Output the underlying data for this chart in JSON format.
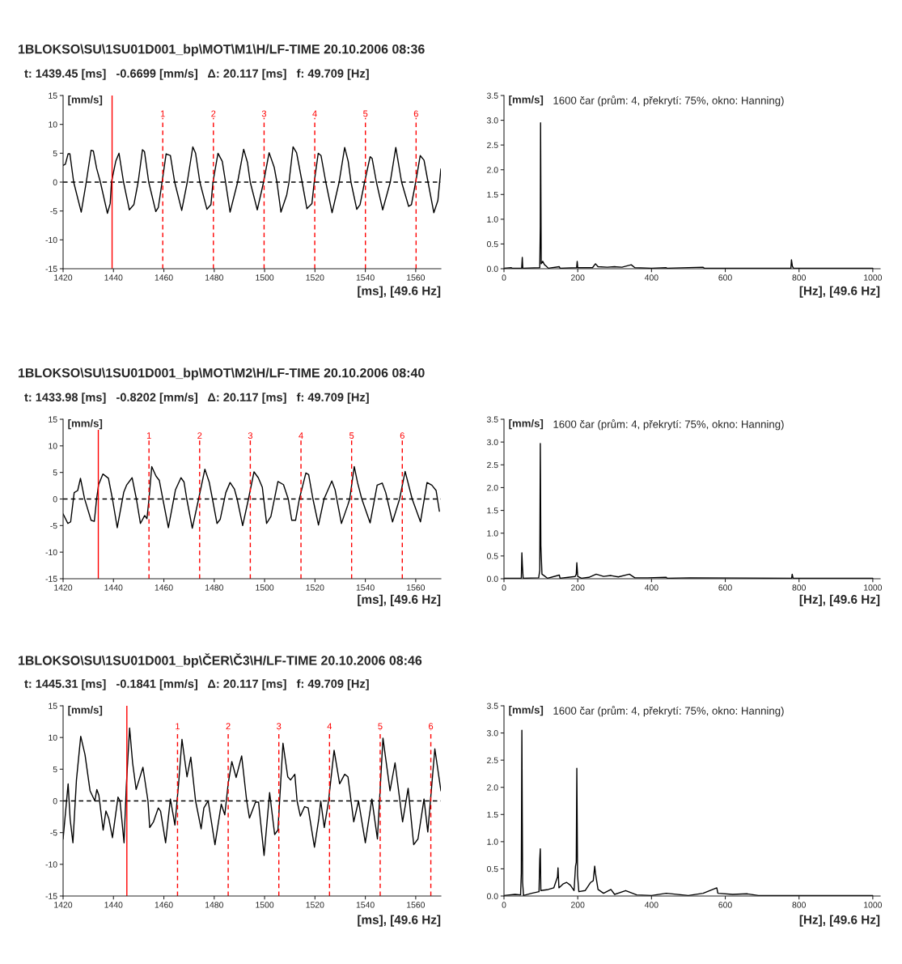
{
  "chart_data": [
    {
      "type": "line",
      "title": "1BLOKSO\\SU\\1SU01D001_bp\\MOT\\M1\\H/LF-TIME 20.10.2006 08:36",
      "annotations": [
        {
          "text": "1",
          "x": 1459.57,
          "y": 11
        },
        {
          "text": "2",
          "x": 1479.68,
          "y": 11
        },
        {
          "text": "3",
          "x": 1499.8,
          "y": 11
        },
        {
          "text": "4",
          "x": 1519.92,
          "y": 11
        },
        {
          "text": "5",
          "x": 1540.04,
          "y": 11
        },
        {
          "text": "6",
          "x": 1560.15,
          "y": 11
        }
      ],
      "subtitle": "t: 1439.45 [ms]   -0.6699 [mm/s]   Δ: 20.117 [ms]   f: 49.709 [Hz]",
      "ylabel": "[mm/s]",
      "xlabel": "[ms], [49.6 Hz]",
      "xlim": [
        1420,
        1570
      ],
      "ylim": [
        -15,
        15
      ],
      "xticks": [
        1420,
        1440,
        1460,
        1480,
        1500,
        1520,
        1540,
        1560
      ],
      "yticks": [
        -15,
        -10,
        -5,
        0,
        5,
        10,
        15
      ],
      "grid": false,
      "series": [
        {
          "color": "#000000",
          "x": [
            1420,
            1420.9,
            1422,
            1422.7,
            1424.2,
            1427.2,
            1429.2,
            1431.1,
            1432,
            1433.3,
            1434.8,
            1437.6,
            1438.7,
            1439.2,
            1440.9,
            1442.2,
            1444,
            1446.3,
            1448.1,
            1449.8,
            1451.5,
            1452.3,
            1454,
            1456.8,
            1457.8,
            1459.3,
            1460.9,
            1462.6,
            1464.3,
            1467.1,
            1469.3,
            1471.5,
            1472.6,
            1474.3,
            1477.1,
            1478.7,
            1479.5,
            1481.5,
            1483.2,
            1484.5,
            1486.3,
            1489.3,
            1491.7,
            1493.2,
            1494.3,
            1497.1,
            1499.6,
            1501.8,
            1503.8,
            1504.9,
            1506.5,
            1508.8,
            1509.7,
            1511.3,
            1512.7,
            1514.9,
            1516.8,
            1518.8,
            1519.7,
            1521.3,
            1522.4,
            1524.3,
            1526.8,
            1529.6,
            1531.8,
            1533.2,
            1534.3,
            1536.6,
            1537.9,
            1539.7,
            1541.9,
            1542.7,
            1544.4,
            1546.9,
            1549.9,
            1552.1,
            1554.4,
            1557.2,
            1558.3,
            1560,
            1561.8,
            1563.3,
            1564.9,
            1567.2,
            1568.8,
            1570
          ],
          "values": [
            2.9,
            3.1,
            4.9,
            4.9,
            0,
            -5.2,
            0,
            5.5,
            5.4,
            2.4,
            0,
            -5.4,
            -3.7,
            0,
            3.6,
            5,
            0,
            -4.8,
            -3.9,
            0,
            5.6,
            5.3,
            0,
            -5.1,
            -4.4,
            0,
            4.9,
            4.6,
            0,
            -4.9,
            0,
            6.1,
            5,
            0,
            -4.7,
            -3.9,
            0,
            5,
            3.6,
            0,
            -5.2,
            0,
            5.7,
            3.4,
            0,
            -4.8,
            0,
            5.1,
            2.6,
            0,
            -5.2,
            -2.2,
            0,
            6.1,
            5.1,
            0,
            -4.6,
            -3.7,
            0,
            5,
            4.6,
            0,
            -5.3,
            0,
            6,
            3.6,
            0,
            -4.7,
            -3.9,
            0,
            4.4,
            4.1,
            0,
            -4.8,
            0,
            6,
            0,
            -4.2,
            -3.9,
            0,
            4.6,
            3.8,
            0,
            -5.3,
            -3.2,
            2.3
          ]
        }
      ],
      "ref_lines": [
        {
          "axis": "y",
          "value": 0,
          "color": "#000000",
          "line_style": "dashed"
        },
        {
          "axis": "x",
          "value": 1439.45,
          "color": "#ff0000",
          "line_style": "solid"
        },
        {
          "axis": "x",
          "value": 1459.57,
          "color": "#ff0000",
          "line_style": "dashed"
        },
        {
          "axis": "x",
          "value": 1479.68,
          "color": "#ff0000",
          "line_style": "dashed"
        },
        {
          "axis": "x",
          "value": 1499.8,
          "color": "#ff0000",
          "line_style": "dashed"
        },
        {
          "axis": "x",
          "value": 1519.92,
          "color": "#ff0000",
          "line_style": "dashed"
        },
        {
          "axis": "x",
          "value": 1540.04,
          "color": "#ff0000",
          "line_style": "dashed"
        },
        {
          "axis": "x",
          "value": 1560.15,
          "color": "#ff0000",
          "line_style": "dashed"
        }
      ]
    },
    {
      "type": "line",
      "title": "1600 čar (prům: 4, překrytí: 75%, okno: Hanning)",
      "ylabel": "[mm/s]",
      "xlabel": "[Hz], [49.6 Hz]",
      "xlim": [
        0,
        1020
      ],
      "ylim": [
        0,
        3.5
      ],
      "xticks": [
        0,
        200,
        400,
        600,
        800,
        1000
      ],
      "yticks": [
        {
          "value": 0,
          "label": "0.0"
        },
        0.5,
        {
          "value": 1,
          "label": "1.0"
        },
        1.5,
        {
          "value": 2,
          "label": "2.0"
        },
        2.5,
        {
          "value": 3,
          "label": "3.0"
        },
        3.5
      ],
      "grid": false,
      "series": [
        {
          "color": "#000000",
          "x": [
            0,
            20,
            22,
            48,
            49.6,
            51,
            97,
            98.5,
            99.2,
            101,
            105,
            110,
            115,
            120,
            150,
            152,
            197,
            198.5,
            200,
            240,
            248,
            255,
            280,
            300,
            320,
            345,
            355,
            400,
            440,
            442,
            540,
            543,
            778,
            779.5,
            782,
            785,
            1000
          ],
          "values": [
            0.01,
            0.02,
            0.01,
            0.01,
            0.23,
            0.01,
            0.02,
            0.86,
            2.95,
            0.1,
            0.15,
            0.08,
            0.05,
            0.01,
            0.04,
            0.01,
            0.02,
            0.15,
            0.02,
            0.02,
            0.1,
            0.04,
            0.03,
            0.04,
            0.03,
            0.08,
            0.02,
            0.01,
            0.02,
            0.01,
            0.03,
            0.01,
            0.01,
            0.18,
            0.05,
            0.01,
            0.01
          ]
        }
      ]
    },
    {
      "type": "line",
      "title": "1BLOKSO\\SU\\1SU01D001_bp\\MOT\\M2\\H/LF-TIME 20.10.2006 08:40",
      "annotations": [
        {
          "text": "1",
          "x": 1454.1,
          "y": 11
        },
        {
          "text": "2",
          "x": 1474.21,
          "y": 11
        },
        {
          "text": "3",
          "x": 1494.33,
          "y": 11
        },
        {
          "text": "4",
          "x": 1514.45,
          "y": 11
        },
        {
          "text": "5",
          "x": 1534.56,
          "y": 11
        },
        {
          "text": "6",
          "x": 1554.68,
          "y": 11
        }
      ],
      "subtitle": "t: 1433.98 [ms]   -0.8202 [mm/s]   Δ: 20.117 [ms]   f: 49.709 [Hz]",
      "ylabel": "[mm/s]",
      "xlabel": "[ms], [49.6 Hz]",
      "xlim": [
        1420,
        1570
      ],
      "ylim": [
        -15,
        15
      ],
      "xticks": [
        1420,
        1440,
        1460,
        1480,
        1500,
        1520,
        1540,
        1560
      ],
      "yticks": [
        -15,
        -10,
        -5,
        0,
        5,
        10,
        15
      ],
      "grid": false,
      "series": [
        {
          "color": "#000000",
          "x": [
            1420,
            1421.9,
            1423,
            1424.4,
            1425.8,
            1426.9,
            1428.5,
            1431.1,
            1432.4,
            1433.3,
            1434.1,
            1435.8,
            1438,
            1439.6,
            1441.5,
            1444.1,
            1445.2,
            1447.4,
            1449.1,
            1450.7,
            1452.4,
            1453.3,
            1454.1,
            1455.2,
            1456.9,
            1458.2,
            1459.6,
            1461.8,
            1464.6,
            1466.8,
            1468,
            1469.1,
            1471.3,
            1473.8,
            1476.3,
            1478,
            1479.3,
            1481.1,
            1482.4,
            1484.6,
            1486.3,
            1488,
            1489.1,
            1491.3,
            1493.6,
            1495.8,
            1497.5,
            1499.1,
            1500.8,
            1502.5,
            1505.3,
            1507.5,
            1509.4,
            1510.8,
            1512.3,
            1513.8,
            1516.4,
            1517.5,
            1519.2,
            1521.4,
            1523.6,
            1526.7,
            1528,
            1530.5,
            1533,
            1533.8,
            1535.6,
            1536.9,
            1538.6,
            1541.9,
            1544.7,
            1546.7,
            1548.1,
            1550.8,
            1553.6,
            1555.8,
            1558.6,
            1561.9,
            1564.5,
            1566.4,
            1568.1,
            1569.4
          ],
          "values": [
            -2.8,
            -4.6,
            -4.3,
            1.2,
            1.6,
            3.9,
            0.1,
            -4,
            -4.2,
            0,
            2.7,
            4.7,
            3.9,
            0,
            -5.4,
            1.3,
            2.6,
            4,
            0,
            -4.6,
            -3.1,
            -3.7,
            0,
            6.1,
            4.3,
            3.5,
            0,
            -5.4,
            1.7,
            4,
            3.2,
            0,
            -5.5,
            0,
            5.6,
            3.2,
            0,
            -4.6,
            -3.8,
            1.2,
            3.1,
            1.9,
            0,
            -5,
            0,
            5.1,
            4,
            2.2,
            -4.6,
            -3.3,
            3.3,
            2.7,
            0,
            -4,
            -4,
            0,
            4.9,
            4.6,
            0,
            -4.9,
            0,
            3.4,
            1.7,
            -4.6,
            -1.2,
            0,
            6.1,
            3.1,
            0,
            -4.5,
            2.6,
            3,
            1.2,
            -4.3,
            0,
            5.2,
            0,
            -4.3,
            3.1,
            2.6,
            1.6,
            -2.3
          ]
        }
      ],
      "ref_lines": [
        {
          "axis": "y",
          "value": 0,
          "color": "#000000",
          "line_style": "dashed"
        },
        {
          "axis": "x",
          "value": 1433.98,
          "color": "#ff0000",
          "line_style": "solid"
        },
        {
          "axis": "x",
          "value": 1454.1,
          "color": "#ff0000",
          "line_style": "dashed"
        },
        {
          "axis": "x",
          "value": 1474.21,
          "color": "#ff0000",
          "line_style": "dashed"
        },
        {
          "axis": "x",
          "value": 1494.33,
          "color": "#ff0000",
          "line_style": "dashed"
        },
        {
          "axis": "x",
          "value": 1514.45,
          "color": "#ff0000",
          "line_style": "dashed"
        },
        {
          "axis": "x",
          "value": 1534.56,
          "color": "#ff0000",
          "line_style": "dashed"
        },
        {
          "axis": "x",
          "value": 1554.68,
          "color": "#ff0000",
          "line_style": "dashed"
        }
      ]
    },
    {
      "type": "line",
      "title": "1600 čar (prům: 4, překrytí: 75%, okno: Hanning)",
      "ylabel": "[mm/s]",
      "xlabel": "[Hz], [49.6 Hz]",
      "xlim": [
        0,
        1020
      ],
      "ylim": [
        0,
        3.5
      ],
      "xticks": [
        0,
        200,
        400,
        600,
        800,
        1000
      ],
      "yticks": [
        {
          "value": 0,
          "label": "0.0"
        },
        0.5,
        {
          "value": 1,
          "label": "1.0"
        },
        1.5,
        {
          "value": 2,
          "label": "2.0"
        },
        2.5,
        {
          "value": 3,
          "label": "3.0"
        },
        3.5
      ],
      "grid": false,
      "series": [
        {
          "color": "#000000",
          "x": [
            0,
            47,
            48.5,
            50,
            52,
            94,
            97,
            98.5,
            100,
            103,
            110,
            118,
            150,
            152,
            193,
            196,
            197.5,
            200,
            210,
            230,
            250,
            270,
            290,
            310,
            340,
            355,
            390,
            440,
            442,
            505,
            780,
            781.5,
            784,
            1000
          ],
          "values": [
            0.01,
            0.01,
            0.57,
            0.28,
            0.01,
            0.02,
            0.18,
            2.97,
            0.72,
            0.1,
            0.06,
            0.01,
            0.08,
            0.01,
            0.05,
            0.1,
            0.35,
            0.05,
            0.01,
            0.03,
            0.1,
            0.05,
            0.07,
            0.04,
            0.1,
            0.02,
            0.02,
            0.03,
            0.01,
            0.02,
            0.01,
            0.1,
            0.01,
            0.01
          ]
        }
      ]
    },
    {
      "type": "line",
      "title": "1BLOKSO\\SU\\1SU01D001_bp\\ČER\\Č3\\H/LF-TIME 20.10.2006 08:46",
      "annotations": [
        {
          "text": "1",
          "x": 1465.43,
          "y": 11
        },
        {
          "text": "2",
          "x": 1485.55,
          "y": 11
        },
        {
          "text": "3",
          "x": 1505.66,
          "y": 11
        },
        {
          "text": "4",
          "x": 1525.78,
          "y": 11
        },
        {
          "text": "5",
          "x": 1545.9,
          "y": 11
        },
        {
          "text": "6",
          "x": 1566.01,
          "y": 11
        }
      ],
      "subtitle": "t: 1445.31 [ms]   -0.1841 [mm/s]   Δ: 20.117 [ms]   f: 49.709 [Hz]",
      "ylabel": "[mm/s]",
      "xlabel": "[ms], [49.6 Hz]",
      "xlim": [
        1420,
        1570
      ],
      "ylim": [
        -15,
        15
      ],
      "xticks": [
        1420,
        1440,
        1460,
        1480,
        1500,
        1520,
        1540,
        1560
      ],
      "yticks": [
        -15,
        -10,
        -5,
        0,
        5,
        10,
        15
      ],
      "grid": false,
      "series": [
        {
          "color": "#000000",
          "x": [
            1420,
            1422,
            1422.8,
            1423.9,
            1425.3,
            1427,
            1428.7,
            1430.7,
            1432.6,
            1433.4,
            1434.2,
            1435.9,
            1437,
            1438.1,
            1439.6,
            1441.8,
            1442.6,
            1444.2,
            1445.1,
            1446.4,
            1447.6,
            1449,
            1450.3,
            1451.7,
            1453.7,
            1454.4,
            1455.9,
            1457.8,
            1458.7,
            1460.7,
            1462.6,
            1464.4,
            1465.9,
            1467.2,
            1469.2,
            1470.7,
            1472.6,
            1474.8,
            1475.9,
            1477.6,
            1480.3,
            1482.8,
            1484.2,
            1485.6,
            1487,
            1488.7,
            1490.9,
            1492.9,
            1494,
            1496.4,
            1497.6,
            1499.8,
            1502,
            1504,
            1505.3,
            1507.3,
            1509.2,
            1510.3,
            1512,
            1512.9,
            1514.2,
            1515.9,
            1517.3,
            1519.8,
            1521.5,
            1522.3,
            1523.7,
            1525.4,
            1527.6,
            1529.8,
            1531.8,
            1533.1,
            1535.4,
            1537.3,
            1540,
            1542.6,
            1544.8,
            1547,
            1549.8,
            1551.8,
            1554.8,
            1557,
            1559.2,
            1560.9,
            1563.3,
            1564.8,
            1567.6,
            1570
          ],
          "values": [
            -6,
            2.7,
            -2.9,
            -6.6,
            3.3,
            10.2,
            7.3,
            1.6,
            0,
            1.8,
            0.9,
            -4.6,
            -1.6,
            -2.7,
            -5.8,
            0.6,
            0,
            -6.6,
            2.4,
            11.5,
            6,
            1.8,
            3.5,
            5.3,
            0,
            -4.2,
            -3.3,
            -1.1,
            -1.6,
            -6.6,
            0.3,
            -3.8,
            2.9,
            9.7,
            3.8,
            6.9,
            0,
            -4.4,
            -1.1,
            0,
            -6.9,
            -0.5,
            -2.2,
            2.9,
            6.2,
            3.7,
            7.1,
            0,
            -2.7,
            -0.2,
            -0.2,
            -8.6,
            1.3,
            -5.3,
            -4.6,
            9.1,
            3.8,
            3.3,
            4.2,
            0,
            -2.4,
            -0.9,
            -1.1,
            -7.3,
            -2.9,
            0,
            -4.2,
            0,
            8,
            2.7,
            4.2,
            3.8,
            -3.3,
            0,
            -6.6,
            0.3,
            -6,
            9.9,
            1.6,
            6,
            -3.3,
            2,
            -6.9,
            -6,
            0.3,
            -4.9,
            8.2,
            1.6
          ]
        }
      ],
      "ref_lines": [
        {
          "axis": "y",
          "value": 0,
          "color": "#000000",
          "line_style": "dashed"
        },
        {
          "axis": "x",
          "value": 1445.31,
          "color": "#ff0000",
          "line_style": "solid"
        },
        {
          "axis": "x",
          "value": 1465.43,
          "color": "#ff0000",
          "line_style": "dashed"
        },
        {
          "axis": "x",
          "value": 1485.55,
          "color": "#ff0000",
          "line_style": "dashed"
        },
        {
          "axis": "x",
          "value": 1505.66,
          "color": "#ff0000",
          "line_style": "dashed"
        },
        {
          "axis": "x",
          "value": 1525.78,
          "color": "#ff0000",
          "line_style": "dashed"
        },
        {
          "axis": "x",
          "value": 1545.9,
          "color": "#ff0000",
          "line_style": "dashed"
        },
        {
          "axis": "x",
          "value": 1566.01,
          "color": "#ff0000",
          "line_style": "dashed"
        }
      ]
    },
    {
      "type": "line",
      "title": "1600 čar (prům: 4, překrytí: 75%, okno: Hanning)",
      "ylabel": "[mm/s]",
      "xlabel": "[Hz], [49.6 Hz]",
      "xlim": [
        0,
        1020
      ],
      "ylim": [
        0,
        3.5
      ],
      "xticks": [
        0,
        200,
        400,
        600,
        800,
        1000
      ],
      "yticks": [
        {
          "value": 0,
          "label": "0.0"
        },
        0.5,
        {
          "value": 1,
          "label": "1.0"
        },
        1.5,
        {
          "value": 2,
          "label": "2.0"
        },
        2.5,
        {
          "value": 3,
          "label": "3.0"
        },
        3.5
      ],
      "grid": false,
      "series": [
        {
          "color": "#000000",
          "x": [
            0,
            30,
            45,
            47,
            48.5,
            50.5,
            53,
            75,
            95,
            97,
            98.5,
            100,
            120,
            135,
            145,
            146.5,
            149,
            160,
            170,
            180,
            190,
            194,
            196,
            197.5,
            199.5,
            203,
            220,
            235,
            242,
            246,
            248,
            255,
            270,
            290,
            300,
            330,
            360,
            400,
            440,
            500,
            540,
            577,
            580,
            620,
            660,
            690,
            1000
          ],
          "values": [
            0.01,
            0.03,
            0.02,
            0.42,
            3.05,
            0.25,
            0.01,
            0.05,
            0.08,
            0.68,
            0.87,
            0.1,
            0.12,
            0.15,
            0.35,
            0.52,
            0.15,
            0.22,
            0.25,
            0.2,
            0.1,
            0.55,
            0.62,
            2.35,
            0.38,
            0.08,
            0.1,
            0.25,
            0.28,
            0.55,
            0.42,
            0.12,
            0.05,
            0.12,
            0.03,
            0.1,
            0.02,
            0.01,
            0.05,
            0.01,
            0.05,
            0.15,
            0.05,
            0.03,
            0.04,
            0.01,
            0.01
          ]
        }
      ]
    }
  ]
}
